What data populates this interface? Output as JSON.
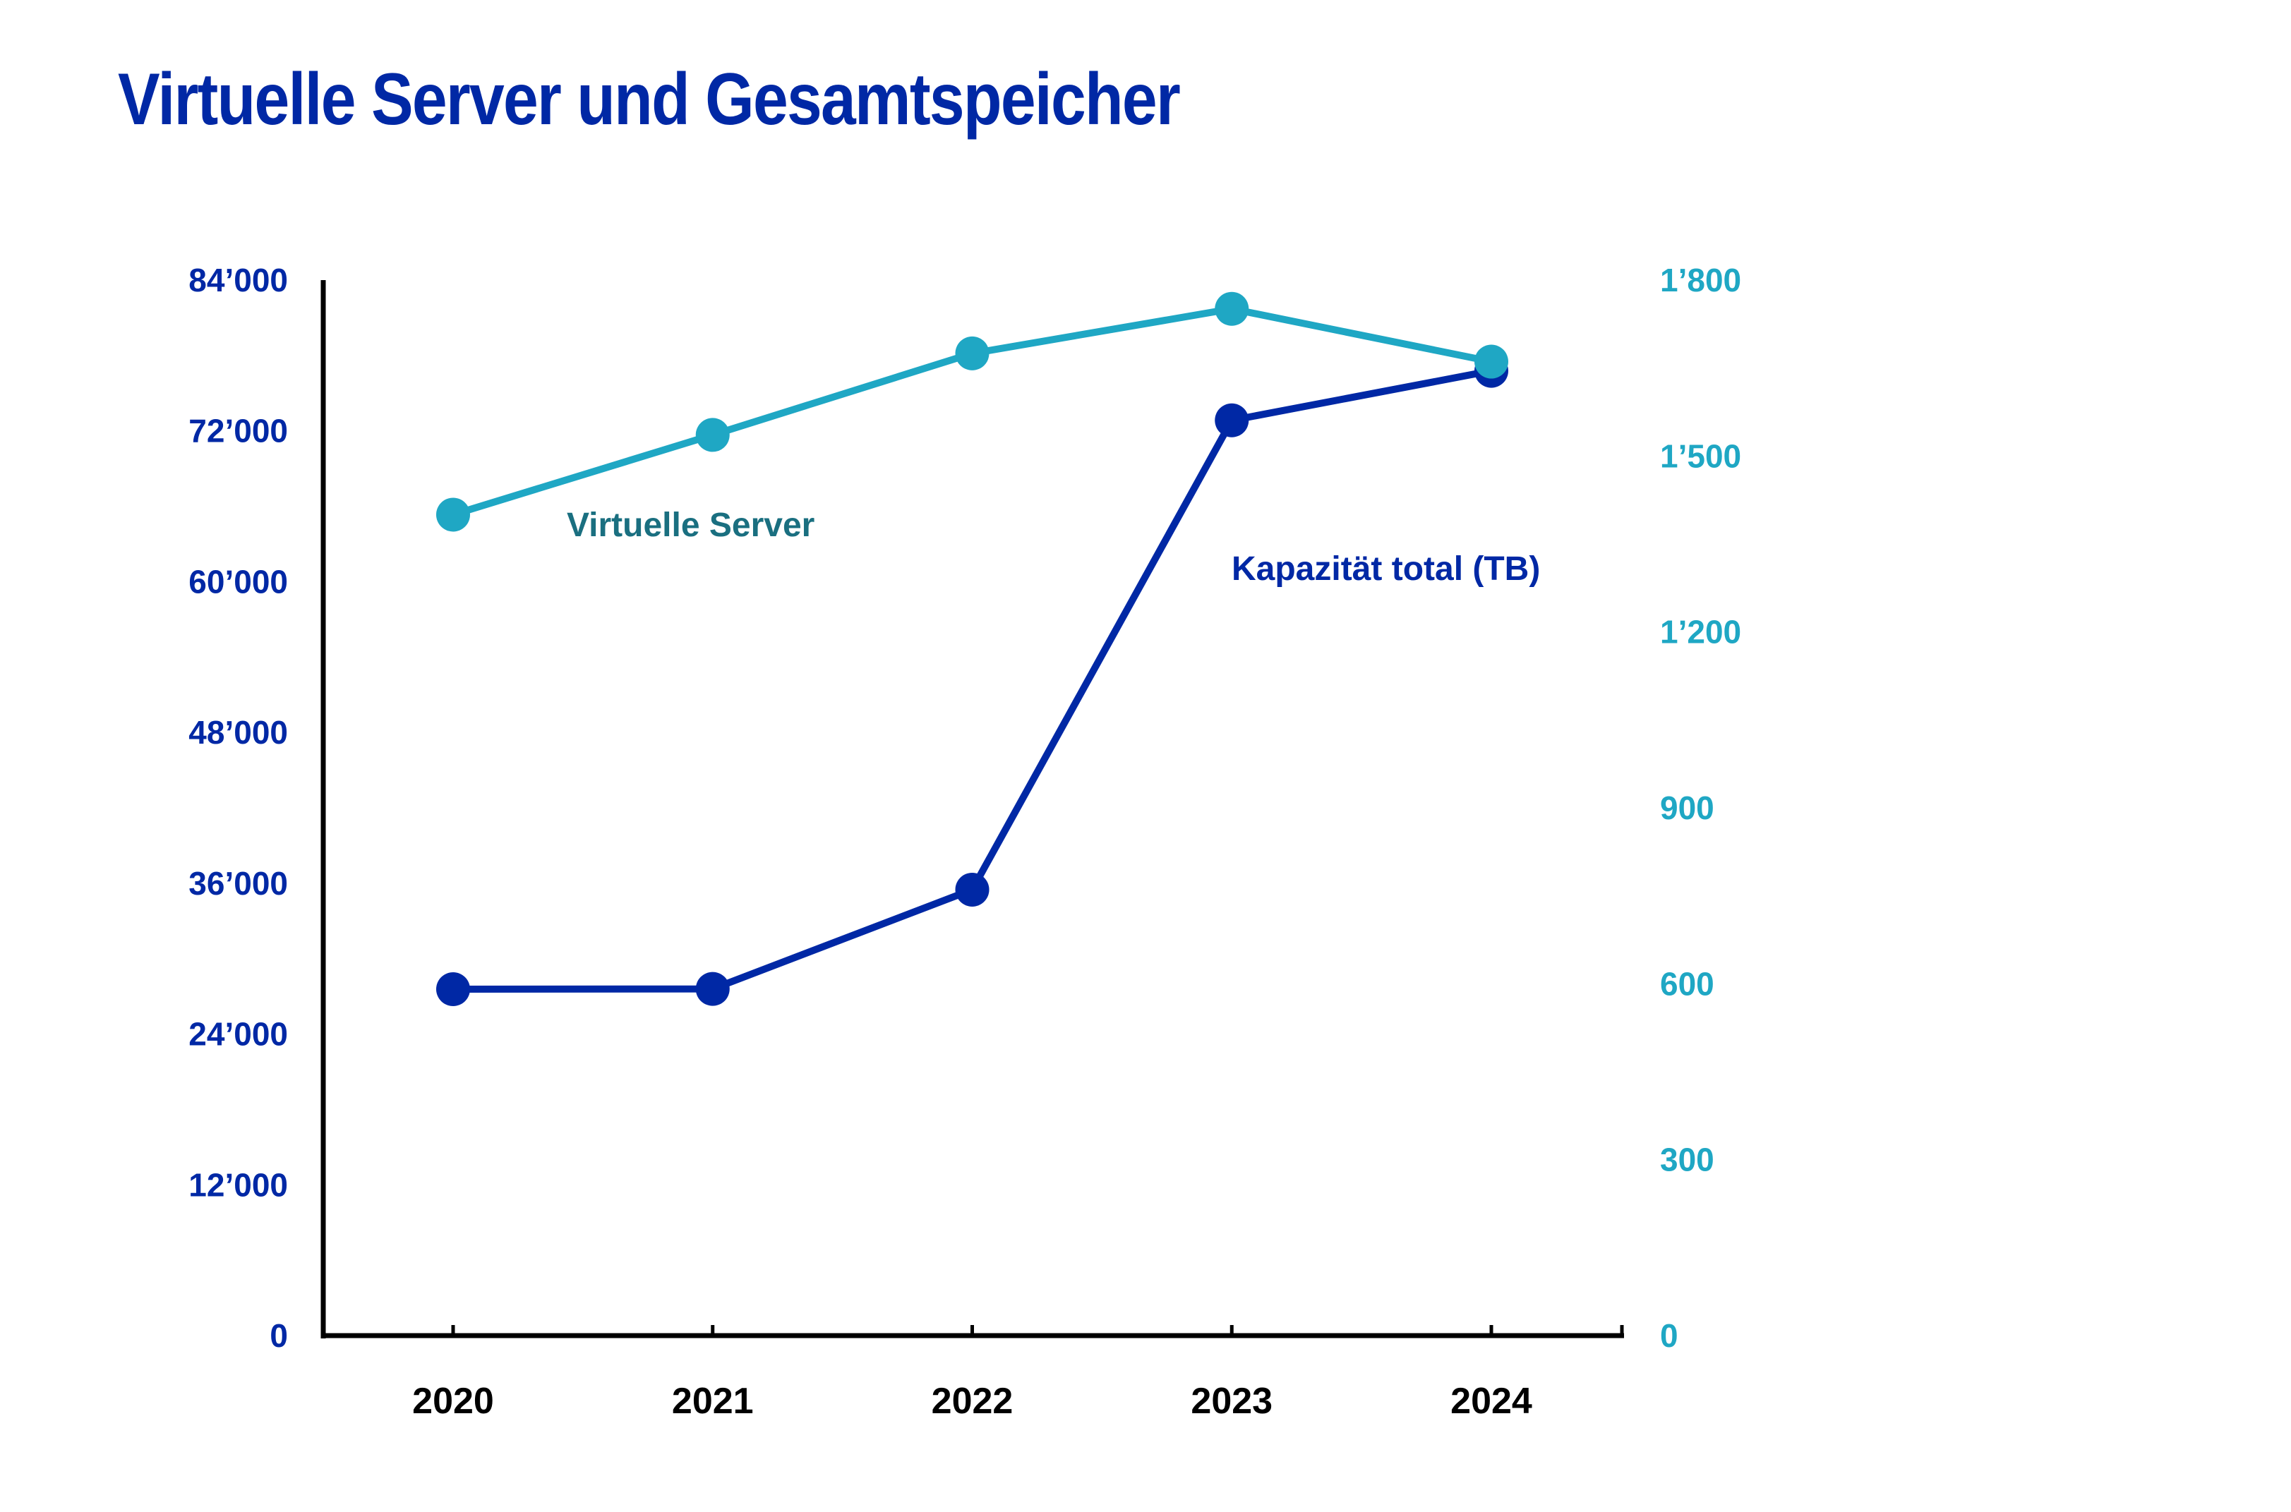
{
  "chart_data": {
    "type": "line",
    "title": "Virtuelle Server und Gesamtspeicher",
    "categories": [
      "2020",
      "2021",
      "2022",
      "2023",
      "2024"
    ],
    "xlabel": "",
    "y_left": {
      "label": "",
      "range": [
        0,
        84000
      ],
      "ticks": [
        0,
        12000,
        24000,
        36000,
        48000,
        60000,
        72000,
        84000
      ],
      "tick_labels": [
        "0",
        "12’000",
        "24’000",
        "36’000",
        "48’000",
        "60’000",
        "72’000",
        "84’000"
      ],
      "color": "#0028a5"
    },
    "y_right": {
      "label": "",
      "range": [
        0,
        1800
      ],
      "ticks": [
        0,
        300,
        600,
        900,
        1200,
        1500,
        1800
      ],
      "tick_labels": [
        "0",
        "300",
        "600",
        "900",
        "1’200",
        "1’500",
        "1’800"
      ],
      "color": "#1fa7c4"
    },
    "series": [
      {
        "name": "Virtuelle Server",
        "axis": "right",
        "color": "#1fa7c4",
        "label_color": "#1a6f80",
        "values": [
          1400,
          1536,
          1675,
          1751,
          1661
        ]
      },
      {
        "name": "Kapazität total (TB)",
        "axis": "left",
        "color": "#0028a5",
        "label_color": "#0028a5",
        "values": [
          27570,
          27590,
          35490,
          72840,
          76780
        ]
      }
    ],
    "grid": false,
    "legend": "inline labels"
  }
}
